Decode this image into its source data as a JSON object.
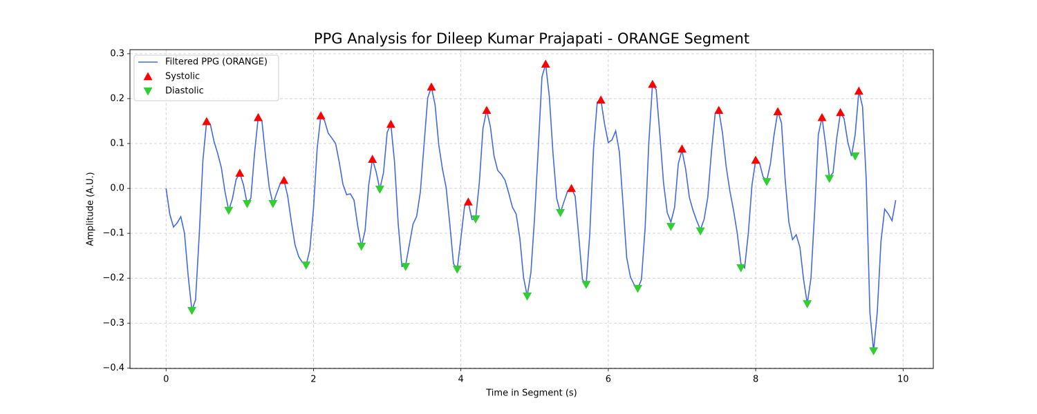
{
  "chart_data": {
    "type": "line",
    "title": "PPG Analysis for Dileep Kumar Prajapati - ORANGE Segment",
    "xlabel": "Time in Segment (s)",
    "ylabel": "Amplitude (A.U.)",
    "xlim": [
      -0.49,
      10.41
    ],
    "ylim": [
      -0.401,
      0.309
    ],
    "xticks": [
      0,
      2,
      4,
      6,
      8,
      10
    ],
    "yticks": [
      {
        "value": -0.4,
        "label": "−0.4"
      },
      {
        "value": -0.3,
        "label": "−0.3"
      },
      {
        "value": -0.2,
        "label": "−0.2"
      },
      {
        "value": -0.1,
        "label": "−0.1"
      },
      {
        "value": 0,
        "label": "0.0"
      },
      0.1,
      0.2,
      0.3
    ],
    "grid": true,
    "legend": "upper left",
    "series": [
      {
        "name": "Filtered PPG (ORANGE)",
        "color": "#4169e1",
        "marker": "line",
        "x": [
          0,
          0.05,
          0.1,
          0.15,
          0.2,
          0.25,
          0.3,
          0.35,
          0.4,
          0.45,
          0.5,
          0.55,
          0.6,
          0.65,
          0.7,
          0.75,
          0.8,
          0.85,
          0.9,
          0.95,
          1.0,
          1.05,
          1.1,
          1.15,
          1.2,
          1.25,
          1.3,
          1.35,
          1.4,
          1.45,
          1.5,
          1.55,
          1.6,
          1.65,
          1.7,
          1.75,
          1.8,
          1.85,
          1.9,
          1.95,
          2.0,
          2.05,
          2.1,
          2.15,
          2.2,
          2.25,
          2.3,
          2.35,
          2.4,
          2.45,
          2.5,
          2.55,
          2.6,
          2.65,
          2.7,
          2.75,
          2.8,
          2.85,
          2.9,
          2.95,
          3.0,
          3.05,
          3.1,
          3.15,
          3.2,
          3.25,
          3.3,
          3.35,
          3.4,
          3.45,
          3.5,
          3.55,
          3.6,
          3.65,
          3.7,
          3.75,
          3.8,
          3.85,
          3.9,
          3.95,
          4.0,
          4.05,
          4.1,
          4.15,
          4.2,
          4.25,
          4.3,
          4.35,
          4.4,
          4.45,
          4.5,
          4.55,
          4.6,
          4.65,
          4.7,
          4.75,
          4.8,
          4.85,
          4.9,
          4.95,
          5.0,
          5.05,
          5.1,
          5.15,
          5.2,
          5.25,
          5.3,
          5.35,
          5.4,
          5.45,
          5.5,
          5.55,
          5.6,
          5.65,
          5.7,
          5.75,
          5.8,
          5.85,
          5.9,
          5.95,
          6.0,
          6.05,
          6.1,
          6.15,
          6.2,
          6.25,
          6.3,
          6.35,
          6.4,
          6.45,
          6.5,
          6.55,
          6.6,
          6.65,
          6.7,
          6.75,
          6.8,
          6.85,
          6.9,
          6.95,
          7.0,
          7.05,
          7.1,
          7.15,
          7.2,
          7.25,
          7.3,
          7.35,
          7.4,
          7.45,
          7.5,
          7.55,
          7.6,
          7.65,
          7.7,
          7.75,
          7.8,
          7.85,
          7.9,
          7.95,
          8.0,
          8.05,
          8.1,
          8.15,
          8.2,
          8.25,
          8.3,
          8.35,
          8.4,
          8.45,
          8.5,
          8.55,
          8.6,
          8.65,
          8.7,
          8.75,
          8.8,
          8.85,
          8.9,
          8.95,
          9.0,
          9.05,
          9.1,
          9.15,
          9.2,
          9.25,
          9.3,
          9.35,
          9.4,
          9.45,
          9.5,
          9.55,
          9.6,
          9.65,
          9.7,
          9.75,
          9.8,
          9.85,
          9.9
        ],
        "values": [
          0,
          -0.057,
          -0.086,
          -0.077,
          -0.063,
          -0.1,
          -0.195,
          -0.272,
          -0.248,
          -0.103,
          0.063,
          0.149,
          0.143,
          0.105,
          0.078,
          0.046,
          -0.008,
          -0.049,
          -0.023,
          0.02,
          0.034,
          0.008,
          -0.034,
          -0.022,
          0.078,
          0.158,
          0.151,
          0.072,
          0.002,
          -0.034,
          -0.011,
          0.011,
          0.018,
          -0.017,
          -0.075,
          -0.126,
          -0.152,
          -0.165,
          -0.171,
          -0.137,
          -0.045,
          0.089,
          0.162,
          0.151,
          0.123,
          0.112,
          0.1,
          0.058,
          0.009,
          -0.014,
          -0.012,
          -0.026,
          -0.083,
          -0.129,
          -0.094,
          0.008,
          0.065,
          0.037,
          -0.002,
          0.035,
          0.125,
          0.143,
          0.058,
          -0.08,
          -0.174,
          -0.171,
          -0.126,
          -0.08,
          -0.062,
          -0.008,
          0.097,
          0.202,
          0.226,
          0.186,
          0.097,
          0.043,
          0.002,
          -0.08,
          -0.168,
          -0.18,
          -0.111,
          -0.04,
          -0.03,
          -0.069,
          -0.068,
          0.012,
          0.134,
          0.174,
          0.138,
          0.072,
          0.04,
          0.031,
          0.018,
          -0.011,
          -0.042,
          -0.057,
          -0.111,
          -0.198,
          -0.24,
          -0.188,
          -0.065,
          0.089,
          0.248,
          0.277,
          0.205,
          0.078,
          -0.022,
          -0.054,
          -0.029,
          -0.005,
          0,
          -0.017,
          -0.108,
          -0.203,
          -0.214,
          -0.098,
          0.089,
          0.192,
          0.197,
          0.143,
          0.102,
          0.108,
          0.128,
          0.082,
          -0.035,
          -0.154,
          -0.197,
          -0.214,
          -0.223,
          -0.203,
          -0.088,
          0.102,
          0.232,
          0.22,
          0.12,
          0.012,
          -0.054,
          -0.075,
          -0.042,
          0.055,
          0.085,
          0.043,
          -0.02,
          -0.049,
          -0.072,
          -0.092,
          -0.069,
          -0.02,
          0.082,
          0.166,
          0.174,
          0.123,
          0.048,
          -0.006,
          -0.049,
          -0.1,
          -0.168,
          -0.177,
          -0.1,
          0.008,
          0.063,
          0.058,
          0.026,
          0.017,
          0.055,
          0.12,
          0.171,
          0.146,
          0.02,
          -0.075,
          -0.114,
          -0.103,
          -0.131,
          -0.203,
          -0.257,
          -0.2,
          -0.052,
          0.12,
          0.158,
          0.097,
          0.025,
          0.035,
          0.112,
          0.169,
          0.155,
          0.103,
          0.072,
          0.12,
          0.217,
          0.182,
          0.02,
          -0.277,
          -0.362,
          -0.275,
          -0.118,
          -0.046,
          -0.057,
          -0.072,
          -0.026
        ]
      },
      {
        "name": "Systolic",
        "color": "#ff0000",
        "marker": "triangle-up",
        "x": [
          0.55,
          1.0,
          1.25,
          1.6,
          2.1,
          2.8,
          3.05,
          3.6,
          4.1,
          4.35,
          5.15,
          5.5,
          5.9,
          6.6,
          7.0,
          7.5,
          8.0,
          8.3,
          8.9,
          9.15,
          9.4
        ],
        "values": [
          0.149,
          0.034,
          0.158,
          0.018,
          0.162,
          0.065,
          0.143,
          0.226,
          -0.03,
          0.174,
          0.277,
          0,
          0.197,
          0.232,
          0.088,
          0.174,
          0.063,
          0.171,
          0.158,
          0.169,
          0.217
        ]
      },
      {
        "name": "Diastolic",
        "color": "#32cd32",
        "marker": "triangle-down",
        "x": [
          0.35,
          0.85,
          1.1,
          1.45,
          1.9,
          2.65,
          2.9,
          3.25,
          3.95,
          4.2,
          4.9,
          5.35,
          5.7,
          6.4,
          6.85,
          7.25,
          7.8,
          8.15,
          8.7,
          9.0,
          9.35,
          9.6
        ],
        "values": [
          -0.272,
          -0.049,
          -0.034,
          -0.034,
          -0.171,
          -0.129,
          -0.002,
          -0.174,
          -0.18,
          -0.068,
          -0.24,
          -0.054,
          -0.214,
          -0.223,
          -0.085,
          -0.095,
          -0.177,
          0.015,
          -0.257,
          0.022,
          0.072,
          -0.362
        ]
      }
    ]
  }
}
